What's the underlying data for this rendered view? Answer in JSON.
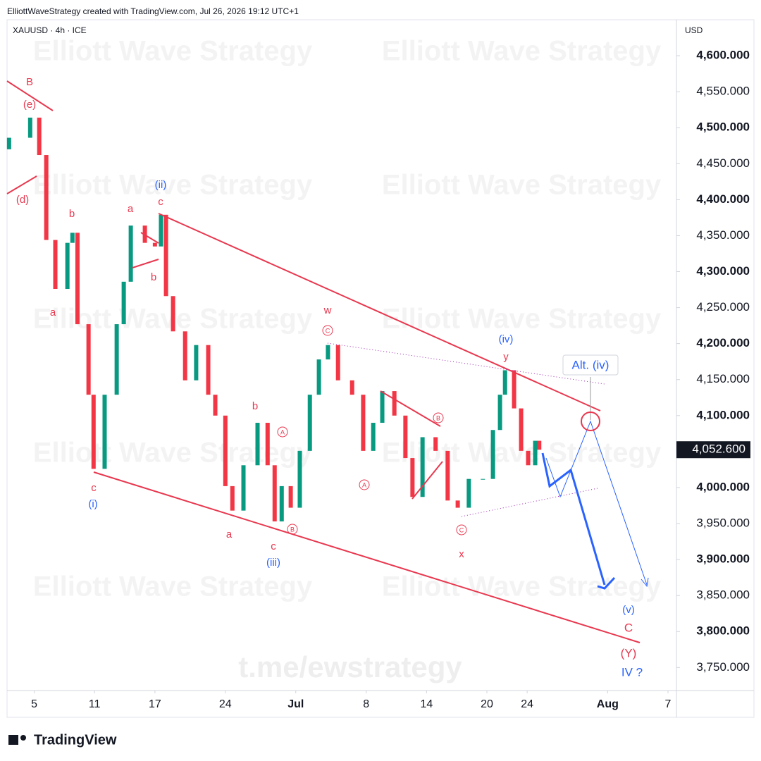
{
  "header": {
    "credit": "ElliottWaveStrategy created with TradingView.com, Jul 26, 2026 19:12 UTC+1",
    "symbol": "XAUUSD · 4h · ICE",
    "currency": "USD"
  },
  "chart_data": {
    "type": "candlestick",
    "x": [
      2.5,
      4.6,
      5.5,
      6.2,
      7.1,
      8.3,
      8.8,
      9.3,
      10.4,
      10.9,
      12,
      13.2,
      13.9,
      14.6,
      16,
      17,
      17.6,
      18.1,
      18.8,
      20,
      21.1,
      22.3,
      23,
      24,
      24.7,
      25.8,
      27.2,
      28.2,
      28.9,
      29.6,
      30.5,
      31.4,
      32.4,
      33.3,
      34.2,
      35.2,
      36.6,
      37.7,
      38.7,
      39.6,
      40.8,
      41.9,
      42.6,
      43.6,
      44.9,
      46.1,
      47.1,
      48.2,
      49.6,
      50.6,
      51.3,
      51.8,
      52.7,
      53.4,
      54.1,
      54.8,
      55.2
    ],
    "open": [
      4470,
      4486,
      4514,
      4462,
      4344,
      4276,
      4340,
      4354,
      4227,
      4129,
      4026,
      4129,
      4227,
      4286,
      4364,
      4340,
      4335,
      4379,
      4266,
      4217,
      4149,
      4198,
      4129,
      4100,
      4002,
      3968,
      4031,
      4090,
      4031,
      3953,
      4002,
      3972,
      4051,
      4129,
      4178,
      4198,
      4149,
      4129,
      4051,
      4090,
      4134,
      4100,
      4041,
      3987,
      4070,
      4051,
      3982,
      3972,
      4012,
      4012,
      4080,
      4129,
      4163,
      4110,
      4051,
      4031,
      4065
    ],
    "close": [
      4486,
      4514,
      4462,
      4344,
      4276,
      4340,
      4354,
      4227,
      4129,
      4026,
      4129,
      4227,
      4286,
      4364,
      4340,
      4335,
      4379,
      4266,
      4217,
      4149,
      4198,
      4129,
      4100,
      4002,
      3968,
      4031,
      4090,
      4031,
      3953,
      4002,
      3972,
      4051,
      4129,
      4178,
      4198,
      4149,
      4129,
      4051,
      4090,
      4134,
      4100,
      4041,
      3987,
      4070,
      4051,
      3982,
      3972,
      4012,
      4012,
      4080,
      4129,
      4163,
      4110,
      4051,
      4031,
      4065,
      4052.6
    ],
    "up_color": "#089981",
    "down_color": "#f23645",
    "xlim": [
      2.3,
      68.7
    ],
    "ylim": [
      3718,
      4650
    ],
    "xticks": [
      5,
      11,
      17,
      24,
      {
        "value": 31,
        "label": "Jul"
      },
      {
        "value": 38,
        "label": "8"
      },
      {
        "value": 44,
        "label": "14"
      },
      {
        "value": 50,
        "label": "20"
      },
      {
        "value": 54,
        "label": "24"
      },
      {
        "value": 62,
        "label": "Aug"
      },
      {
        "value": 68,
        "label": "7"
      }
    ],
    "yticks": [
      {
        "value": 4600,
        "label": "4,600.000"
      },
      {
        "value": 4550,
        "label": "4,550.000"
      },
      {
        "value": 4500,
        "label": "4,500.000"
      },
      {
        "value": 4450,
        "label": "4,450.000"
      },
      {
        "value": 4400,
        "label": "4,400.000"
      },
      {
        "value": 4350,
        "label": "4,350.000"
      },
      {
        "value": 4300,
        "label": "4,300.000"
      },
      {
        "value": 4250,
        "label": "4,250.000"
      },
      {
        "value": 4200,
        "label": "4,200.000"
      },
      {
        "value": 4150,
        "label": "4,150.000"
      },
      {
        "value": 4100,
        "label": "4,100.000"
      },
      {
        "value": 4050,
        "label": "4,050.000"
      },
      {
        "value": 4000,
        "label": "4,000.000"
      },
      {
        "value": 3950,
        "label": "3,950.000"
      },
      {
        "value": 3900,
        "label": "3,900.000"
      },
      {
        "value": 3850,
        "label": "3,850.000"
      },
      {
        "value": 3800,
        "label": "3,800.000"
      },
      {
        "value": 3750,
        "label": "3,750.000"
      }
    ],
    "last_price": {
      "value": 4052.6,
      "label": "4,052.600"
    }
  },
  "annotations": [
    "B",
    "(e)",
    "(d)",
    "b",
    "a",
    "c",
    "(i)",
    "(ii)",
    "a",
    "c",
    "b",
    "w",
    "C",
    "(iv)",
    "y",
    "Alt. (iv)",
    "b",
    "A",
    "B",
    "A",
    "B",
    "C",
    "a",
    "c",
    "(iii)",
    "x",
    "(v)",
    "C",
    "(Y)",
    "IV ?"
  ],
  "watermark": "Elliott Wave Strategy",
  "channel": "t.me/ewstrategy",
  "logo": "TradingView"
}
